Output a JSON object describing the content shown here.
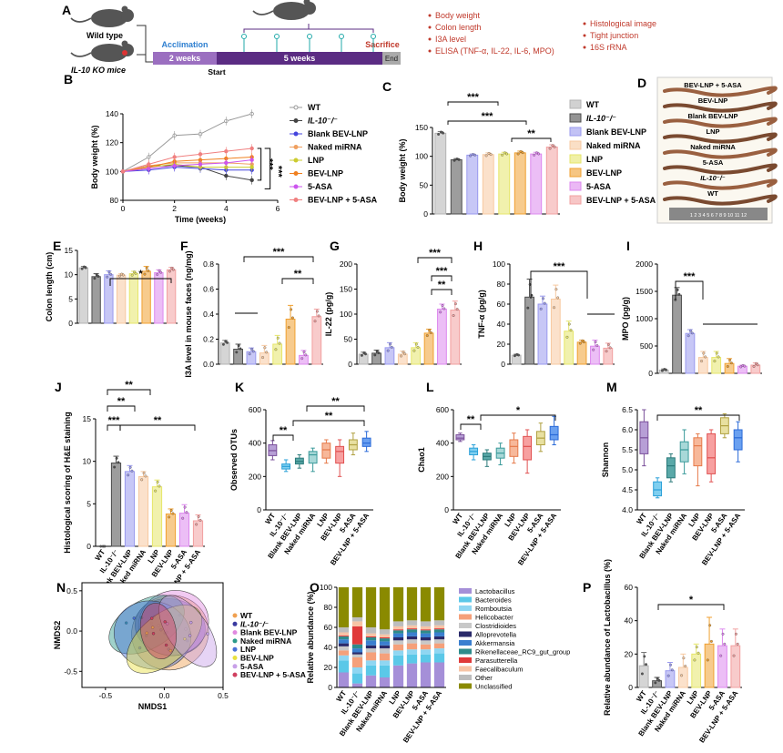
{
  "colors": {
    "WT": "#b3b3b3",
    "IL10": "#4d4d4d",
    "Blank": "#9999ee",
    "Naked": "#f7c9a0",
    "LNP": "#e6e66a",
    "BEVLNP": "#f0a030",
    "ASA": "#dd88ee",
    "BEVLNPASA": "#f2a0a0",
    "accent": "#5b2c83",
    "red": "#c0392b"
  },
  "groups": [
    "WT",
    "IL-10⁻/⁻",
    "Blank BEV-LNP",
    "Naked miRNA",
    "LNP",
    "BEV-LNP",
    "5-ASA",
    "BEV-LNP + 5-ASA"
  ],
  "panelA": {
    "label": "A",
    "wt_label": "Wild type",
    "ko_label": "IL-10 KO mice",
    "acclimation": "Acclimation",
    "weeks2": "2 weeks",
    "weeks5": "5 weeks",
    "start": "Start",
    "end": "End",
    "sacrifice": "Sacrifice",
    "readouts_left": [
      "Body weight",
      "Colon length",
      "I3A level",
      "ELISA  (TNF-α, IL-22,  IL-6,  MPO)"
    ],
    "readouts_right": [
      "Histological image",
      "Tight  junction",
      "16S rRNA"
    ]
  },
  "panelD": {
    "label": "D",
    "items": [
      "BEV-LNP + 5-ASA",
      "BEV-LNP",
      "Blank BEV-LNP",
      "LNP",
      "Naked miRNA",
      "5-ASA",
      "IL-10⁻/⁻",
      "WT"
    ],
    "ruler": "1 2 3 4 5 6 7 8 9 10 11 12"
  },
  "chart_data": [
    {
      "panel": "B",
      "type": "line",
      "xlabel": "Time (weeks)",
      "ylabel": "Body weight (%)",
      "xlim": [
        0,
        6
      ],
      "ylim": [
        80,
        140
      ],
      "xticks": [
        "0",
        "2",
        "4",
        "6"
      ],
      "yticks": [
        "80",
        "100",
        "120",
        "140"
      ],
      "x": [
        0,
        1,
        2,
        3,
        4,
        5
      ],
      "series": [
        {
          "name": "WT",
          "values": [
            100,
            110,
            125,
            126,
            135,
            140
          ]
        },
        {
          "name": "IL-10⁻/⁻",
          "values": [
            100,
            104,
            104,
            103,
            97,
            94
          ]
        },
        {
          "name": "Blank BEV-LNP",
          "values": [
            100,
            101,
            103,
            102,
            101,
            101
          ]
        },
        {
          "name": "Naked miRNA",
          "values": [
            100,
            104,
            106,
            106,
            106,
            105
          ]
        },
        {
          "name": "LNP",
          "values": [
            100,
            103,
            105,
            103,
            103,
            103
          ]
        },
        {
          "name": "BEV-LNP",
          "values": [
            100,
            103,
            107,
            108,
            109,
            110
          ]
        },
        {
          "name": "5-ASA",
          "values": [
            100,
            102,
            104,
            105,
            106,
            108
          ]
        },
        {
          "name": "BEV-LNP + 5-ASA",
          "values": [
            100,
            105,
            110,
            112,
            114,
            116
          ]
        }
      ],
      "sig": [
        "***",
        "***"
      ]
    },
    {
      "panel": "C",
      "type": "bar",
      "ylabel": "Body weight (%)",
      "ylim": [
        0,
        150
      ],
      "yticks": [
        "0",
        "50",
        "100",
        "150"
      ],
      "values": [
        140,
        94,
        102,
        103,
        104,
        106,
        104,
        116
      ],
      "errors": [
        3,
        2,
        2,
        3,
        3,
        3,
        3,
        4
      ],
      "sig": [
        "***",
        "***",
        "**"
      ]
    },
    {
      "panel": "E",
      "type": "bar",
      "ylabel": "Colon length (cm)",
      "ylim": [
        0,
        15
      ],
      "yticks": [
        "0",
        "5",
        "10",
        "15"
      ],
      "values": [
        11.4,
        9.6,
        10.0,
        9.9,
        10.2,
        10.7,
        10.4,
        11.0
      ],
      "errors": [
        0.3,
        0.6,
        0.8,
        0.3,
        0.5,
        1.0,
        0.6,
        0.5
      ],
      "sig": [
        "*"
      ]
    },
    {
      "panel": "F",
      "type": "bar",
      "ylabel": "I3A level in mouse faces (ng/mg)",
      "ylim": [
        0,
        0.8
      ],
      "yticks": [
        "0.0",
        "0.2",
        "0.4",
        "0.6",
        "0.8"
      ],
      "values": [
        0.17,
        0.12,
        0.1,
        0.09,
        0.16,
        0.36,
        0.07,
        0.38
      ],
      "errors": [
        0.02,
        0.04,
        0.03,
        0.06,
        0.07,
        0.11,
        0.04,
        0.06
      ],
      "sig": [
        "***",
        "**"
      ]
    },
    {
      "panel": "G",
      "type": "bar",
      "ylabel": "IL-22 (pg/g)",
      "ylim": [
        0,
        200
      ],
      "yticks": [
        "0",
        "50",
        "100",
        "150",
        "200"
      ],
      "values": [
        20,
        22,
        33,
        20,
        33,
        62,
        110,
        108
      ],
      "errors": [
        4,
        6,
        10,
        6,
        10,
        8,
        10,
        18
      ],
      "sig": [
        "***",
        "***",
        "**"
      ]
    },
    {
      "panel": "H",
      "type": "bar",
      "ylabel": "TNF-α (pg/g)",
      "ylim": [
        0,
        100
      ],
      "yticks": [
        "0",
        "20",
        "40",
        "60",
        "80",
        "100"
      ],
      "values": [
        9,
        67,
        60,
        65,
        33,
        22,
        18,
        16
      ],
      "errors": [
        1,
        18,
        8,
        14,
        10,
        2,
        6,
        5
      ],
      "sig": [
        "***"
      ]
    },
    {
      "panel": "I",
      "type": "bar",
      "ylabel": "MPO (pg/g)",
      "ylim": [
        0,
        2000
      ],
      "yticks": [
        "0",
        "500",
        "1000",
        "1500",
        "2000"
      ],
      "values": [
        60,
        1430,
        730,
        290,
        290,
        180,
        130,
        150
      ],
      "errors": [
        20,
        140,
        70,
        110,
        110,
        90,
        20,
        40
      ],
      "sig": [
        "***"
      ]
    },
    {
      "panel": "J",
      "type": "bar",
      "ylabel": "Histological scoring of H&E staining",
      "ylim": [
        0,
        15
      ],
      "yticks": [
        "0",
        "5",
        "10",
        "15"
      ],
      "values": [
        0,
        9.8,
        8.8,
        8.2,
        7.0,
        3.8,
        3.9,
        3.0
      ],
      "errors": [
        0,
        0.8,
        0.7,
        0.6,
        0.8,
        0.6,
        1.0,
        0.7
      ],
      "sig": [
        "**",
        "**",
        "***",
        "**"
      ]
    },
    {
      "panel": "K",
      "type": "box",
      "ylabel": "Observed OTUs",
      "ylim": [
        0,
        600
      ],
      "yticks": [
        "0",
        "200",
        "400",
        "600"
      ],
      "boxes": [
        [
          300,
          325,
          355,
          390,
          415
        ],
        [
          230,
          245,
          260,
          275,
          300
        ],
        [
          250,
          275,
          290,
          310,
          330
        ],
        [
          230,
          280,
          330,
          350,
          370
        ],
        [
          280,
          310,
          360,
          400,
          420
        ],
        [
          200,
          280,
          350,
          380,
          420
        ],
        [
          330,
          360,
          390,
          420,
          460
        ],
        [
          350,
          380,
          400,
          430,
          470
        ]
      ],
      "sig": [
        "**",
        "**",
        "**"
      ]
    },
    {
      "panel": "L",
      "type": "box",
      "ylabel": "Chao1",
      "ylim": [
        0,
        600
      ],
      "yticks": [
        "0",
        "200",
        "400",
        "600"
      ],
      "boxes": [
        [
          410,
          420,
          430,
          450,
          460
        ],
        [
          300,
          330,
          350,
          370,
          390
        ],
        [
          260,
          300,
          320,
          340,
          360
        ],
        [
          270,
          310,
          340,
          370,
          400
        ],
        [
          280,
          320,
          380,
          420,
          460
        ],
        [
          220,
          300,
          380,
          440,
          480
        ],
        [
          350,
          390,
          430,
          470,
          520
        ],
        [
          390,
          420,
          450,
          500,
          560
        ]
      ],
      "sig": [
        "**",
        "*"
      ]
    },
    {
      "panel": "M",
      "type": "box",
      "ylabel": "Shannon",
      "ylim": [
        4.0,
        6.5
      ],
      "yticks": [
        "4.0",
        "4.5",
        "5.0",
        "5.5",
        "6.0",
        "6.5"
      ],
      "boxes": [
        [
          5.1,
          5.4,
          5.8,
          6.2,
          6.5
        ],
        [
          4.3,
          4.35,
          4.5,
          4.7,
          4.8
        ],
        [
          4.7,
          4.8,
          5.1,
          5.3,
          5.4
        ],
        [
          4.9,
          5.2,
          5.5,
          5.7,
          6.0
        ],
        [
          4.6,
          5.1,
          5.6,
          5.8,
          5.9
        ],
        [
          4.7,
          4.9,
          5.3,
          5.9,
          6.0
        ],
        [
          5.8,
          5.9,
          6.1,
          6.3,
          6.4
        ],
        [
          5.2,
          5.5,
          5.8,
          6.0,
          6.2
        ]
      ],
      "sig": [
        "**"
      ]
    },
    {
      "panel": "N",
      "type": "scatter",
      "xlabel": "NMDS1",
      "ylabel": "NMDS2",
      "xlim": [
        -0.7,
        0.5
      ],
      "ylim": [
        -0.7,
        0.6
      ],
      "xticks": [
        "-0.5",
        "0.0",
        "0.5"
      ],
      "yticks": [
        "-0.5",
        "0.0",
        "0.5"
      ],
      "ellipses": [
        {
          "name": "WT",
          "cx": 0.05,
          "cy": -0.02,
          "rx": 0.33,
          "ry": 0.46,
          "rot": -25
        },
        {
          "name": "IL-10⁻/⁻",
          "cx": 0.05,
          "cy": 0.05,
          "rx": 0.3,
          "ry": 0.35,
          "rot": 10
        },
        {
          "name": "Blank BEV-LNP",
          "cx": 0.08,
          "cy": 0.1,
          "rx": 0.3,
          "ry": 0.4,
          "rot": -20
        },
        {
          "name": "Naked miRNA",
          "cx": -0.15,
          "cy": 0.08,
          "rx": 0.35,
          "ry": 0.3,
          "rot": -30
        },
        {
          "name": "LNP",
          "cx": -0.1,
          "cy": -0.05,
          "rx": 0.33,
          "ry": 0.42,
          "rot": 15
        },
        {
          "name": "BEV-LNP",
          "cx": 0.0,
          "cy": -0.1,
          "rx": 0.38,
          "ry": 0.3,
          "rot": -40
        },
        {
          "name": "5-ASA",
          "cx": 0.2,
          "cy": 0.0,
          "rx": 0.35,
          "ry": 0.25,
          "rot": 55
        },
        {
          "name": "BEV-LNP + 5-ASA",
          "cx": -0.05,
          "cy": 0.0,
          "rx": 0.15,
          "ry": 0.35,
          "rot": -10
        }
      ]
    },
    {
      "panel": "O",
      "type": "stacked-bar",
      "ylabel": "Relative abundance (%)",
      "ylim": [
        0,
        100
      ],
      "yticks": [
        "0",
        "20",
        "40",
        "60",
        "80",
        "100"
      ],
      "taxa": [
        "Lactobacillus",
        "Bacteroides",
        "Romboutsia",
        "Helicobacter",
        "Clostridioides",
        "Alloprevotella",
        "Akkermansia",
        "Rikenellaceae_RC9_gut_group",
        "Parasutterella",
        "Faecalibaculum",
        "Other",
        "Unclassified"
      ],
      "taxa_colors": [
        "#a58fd8",
        "#5bc8e8",
        "#8fd6f2",
        "#f5a07a",
        "#c8c8c8",
        "#2a2a6a",
        "#3a7fd0",
        "#2e8b8b",
        "#e03a3a",
        "#f7c4a6",
        "#bdbdbd",
        "#8a8a00"
      ],
      "values": [
        [
          15,
          12,
          5,
          5,
          4,
          3,
          4,
          3,
          1,
          3,
          5,
          40
        ],
        [
          4,
          10,
          6,
          10,
          3,
          2,
          4,
          4,
          18,
          5,
          4,
          30
        ],
        [
          12,
          10,
          5,
          8,
          4,
          3,
          5,
          3,
          1,
          3,
          6,
          40
        ],
        [
          10,
          12,
          5,
          7,
          5,
          3,
          4,
          3,
          1,
          3,
          5,
          42
        ],
        [
          22,
          10,
          5,
          6,
          4,
          3,
          4,
          3,
          1,
          3,
          5,
          34
        ],
        [
          24,
          9,
          5,
          6,
          4,
          3,
          4,
          3,
          1,
          3,
          5,
          33
        ],
        [
          25,
          8,
          5,
          5,
          4,
          3,
          4,
          3,
          1,
          3,
          5,
          34
        ],
        [
          25,
          9,
          5,
          5,
          4,
          3,
          4,
          3,
          1,
          3,
          5,
          33
        ]
      ]
    },
    {
      "panel": "P",
      "type": "bar",
      "ylabel": "Relative abundance of Lactobacillus (%)",
      "ylim": [
        0,
        60
      ],
      "yticks": [
        "0",
        "20",
        "40",
        "60"
      ],
      "values": [
        13,
        4,
        10,
        12,
        20,
        26,
        25,
        25
      ],
      "errors": [
        8,
        2,
        5,
        8,
        6,
        16,
        10,
        10
      ],
      "sig": [
        "*"
      ]
    }
  ]
}
